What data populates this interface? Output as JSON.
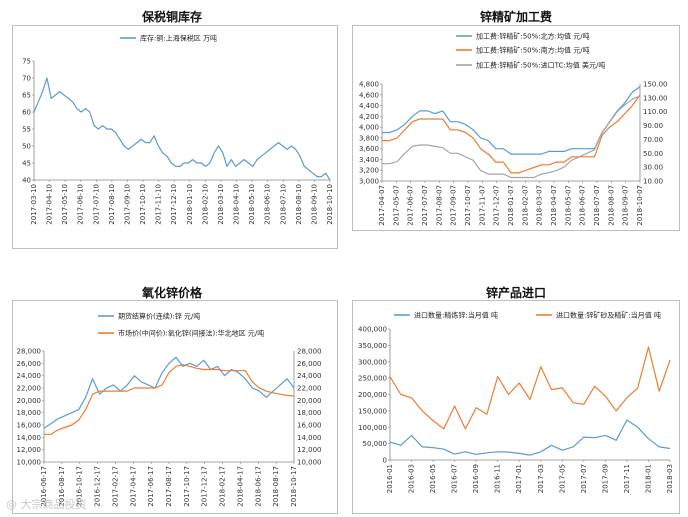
{
  "watermark": "@ 大宗商品投资",
  "chart_data": [
    {
      "id": "copper",
      "type": "line",
      "title": "保税铜库存",
      "ylim": [
        40,
        75
      ],
      "yticks": [
        40,
        45,
        50,
        55,
        60,
        65,
        70,
        75
      ],
      "xtick_labels": [
        "2017-03-10",
        "2017-04-10",
        "2017-05-10",
        "2017-06-10",
        "2017-07-10",
        "2017-08-10",
        "2017-09-10",
        "2017-10-10",
        "2017-11-10",
        "2017-12-10",
        "2018-01-10",
        "2018-02-10",
        "2018-03-10",
        "2018-04-10",
        "2018-05-10",
        "2018-06-10",
        "2018-07-10",
        "2018-08-10",
        "2018-09-10",
        "2018-10-10"
      ],
      "series": [
        {
          "name": "库存:铜:上海保税区 万吨",
          "color": "#5b9bd5",
          "axis": "left",
          "values": [
            60,
            63,
            66,
            70,
            64,
            65,
            66,
            65,
            64,
            63,
            61,
            60,
            61,
            60,
            56,
            55,
            56,
            55,
            55,
            54,
            52,
            50,
            49,
            50,
            51,
            52,
            51,
            51,
            53,
            50,
            48,
            47,
            45,
            44,
            44,
            45,
            45,
            46,
            45,
            45,
            44,
            45,
            48,
            50,
            48,
            44,
            46,
            44,
            45,
            46,
            45,
            44,
            46,
            47,
            48,
            49,
            50,
            51,
            50,
            49,
            50,
            49,
            47,
            44,
            43,
            42,
            41,
            41,
            42,
            40
          ]
        }
      ]
    },
    {
      "id": "zinc_tc",
      "type": "line",
      "title": "锌精矿加工费",
      "ylim": [
        3000,
        4800
      ],
      "yticks": [
        3000,
        3200,
        3400,
        3600,
        3800,
        4000,
        4200,
        4400,
        4600,
        4800
      ],
      "y2lim": [
        10,
        150
      ],
      "y2ticks": [
        10,
        30,
        50,
        70,
        90,
        110,
        130,
        150
      ],
      "y2tick_labels": [
        "10.00",
        "30.00",
        "50.00",
        "70.00",
        "90.00",
        "110.00",
        "130.00",
        "150.00"
      ],
      "xtick_labels": [
        "2017-04-07",
        "2017-05-07",
        "2017-06-07",
        "2017-07-07",
        "2017-08-07",
        "2017-09-07",
        "2017-10-07",
        "2017-11-07",
        "2017-12-07",
        "2018-01-07",
        "2018-02-07",
        "2018-03-07",
        "2018-04-07",
        "2018-05-07",
        "2018-06-07",
        "2018-07-07",
        "2018-08-07",
        "2018-09-07",
        "2018-10-07"
      ],
      "series": [
        {
          "name": "加工费:锌精矿:50%:北方:均值 元/吨",
          "color": "#5b9bd5",
          "axis": "left",
          "values": [
            3900,
            3900,
            3950,
            4050,
            4200,
            4300,
            4300,
            4250,
            4300,
            4100,
            4100,
            4050,
            3950,
            3800,
            3750,
            3600,
            3600,
            3500,
            3500,
            3500,
            3500,
            3500,
            3550,
            3550,
            3550,
            3600,
            3600,
            3600,
            3600,
            3900,
            4100,
            4300,
            4450,
            4650,
            4750
          ]
        },
        {
          "name": "加工费:锌精矿:50%:南方:均值 元/吨",
          "color": "#ed7d31",
          "axis": "left",
          "values": [
            3750,
            3750,
            3800,
            3950,
            4100,
            4150,
            4150,
            4150,
            4150,
            3950,
            3950,
            3900,
            3800,
            3600,
            3500,
            3350,
            3350,
            3150,
            3150,
            3200,
            3250,
            3300,
            3300,
            3350,
            3350,
            3450,
            3450,
            3450,
            3450,
            3850,
            4000,
            4100,
            4250,
            4400,
            4600
          ]
        },
        {
          "name": "加工费:锌精矿:50%:进口TC:均值 美元/吨",
          "color": "#a5a5a5",
          "axis": "right",
          "values": [
            35,
            35,
            38,
            50,
            60,
            62,
            62,
            60,
            58,
            50,
            50,
            45,
            40,
            25,
            20,
            20,
            20,
            15,
            15,
            15,
            15,
            20,
            22,
            25,
            30,
            40,
            45,
            50,
            55,
            80,
            95,
            110,
            120,
            128,
            133
          ]
        }
      ]
    },
    {
      "id": "zinc_oxide",
      "type": "line",
      "title": "氧化锌价格",
      "ylim": [
        10000,
        28000
      ],
      "yticks": [
        10000,
        12000,
        14000,
        16000,
        18000,
        20000,
        22000,
        24000,
        26000,
        28000
      ],
      "y2lim": [
        10000,
        28000
      ],
      "y2ticks": [
        10000,
        12000,
        14000,
        16000,
        18000,
        20000,
        22000,
        24000,
        26000,
        28000
      ],
      "xtick_labels": [
        "2016-06-17",
        "2016-08-17",
        "2016-10-17",
        "2016-12-17",
        "2017-02-17",
        "2017-04-17",
        "2017-06-17",
        "2017-08-17",
        "2017-10-17",
        "2017-12-17",
        "2018-02-17",
        "2018-04-17",
        "2018-06-17",
        "2018-08-17",
        "2018-10-17"
      ],
      "series": [
        {
          "name": "期货结算价(连续):锌 元/吨",
          "color": "#5b9bd5",
          "axis": "left",
          "values": [
            15500,
            16200,
            17000,
            17500,
            18000,
            18500,
            20500,
            23500,
            21000,
            22000,
            22500,
            21500,
            22500,
            24000,
            23000,
            22500,
            22000,
            24500,
            26000,
            27000,
            25500,
            26000,
            25500,
            26500,
            25000,
            25500,
            24000,
            25000,
            24500,
            23500,
            22000,
            21500,
            20500,
            21500,
            22500,
            23500,
            22000
          ]
        },
        {
          "name": "市场价(中间价):氧化锌(间接法):华北地区 元/吨",
          "color": "#ed7d31",
          "axis": "right",
          "values": [
            14500,
            14500,
            15200,
            15600,
            16000,
            16800,
            18500,
            21000,
            21500,
            21500,
            21500,
            21500,
            21500,
            22000,
            22000,
            22000,
            22000,
            22500,
            24500,
            25500,
            25800,
            25500,
            25200,
            25000,
            25000,
            25000,
            24800,
            24800,
            24800,
            24800,
            23000,
            22000,
            21500,
            21200,
            21000,
            20800,
            20700
          ]
        }
      ]
    },
    {
      "id": "zinc_import",
      "type": "line",
      "title": "锌产品进口",
      "ylim": [
        0,
        400000
      ],
      "yticks": [
        0,
        50000,
        100000,
        150000,
        200000,
        250000,
        300000,
        350000,
        400000
      ],
      "ytick_labels": [
        "0",
        "50,000",
        "100,000",
        "150,000",
        "200,000",
        "250,000",
        "300,000",
        "350,000",
        "400,000"
      ],
      "xtick_labels": [
        "2016-01",
        "2016-03",
        "2016-05",
        "2016-07",
        "2016-09",
        "2016-11",
        "2017-01",
        "2017-03",
        "2017-05",
        "2017-07",
        "2017-09",
        "2017-11",
        "2018-01",
        "2018-03"
      ],
      "series": [
        {
          "name": "进口数量:精炼锌:当月值 吨",
          "color": "#5b9bd5",
          "axis": "left",
          "values": [
            55000,
            45000,
            75000,
            40000,
            38000,
            33000,
            18000,
            25000,
            17000,
            22000,
            25000,
            24000,
            20000,
            15000,
            25000,
            45000,
            30000,
            40000,
            70000,
            68000,
            75000,
            60000,
            122000,
            100000,
            65000,
            40000,
            35000
          ]
        },
        {
          "name": "进口数量:锌矿砂及精矿:当月值 吨",
          "color": "#ed7d31",
          "axis": "left",
          "values": [
            255000,
            200000,
            190000,
            150000,
            120000,
            95000,
            165000,
            95000,
            160000,
            140000,
            255000,
            200000,
            235000,
            185000,
            285000,
            215000,
            220000,
            175000,
            170000,
            225000,
            195000,
            150000,
            190000,
            220000,
            345000,
            210000,
            305000
          ]
        }
      ]
    }
  ]
}
